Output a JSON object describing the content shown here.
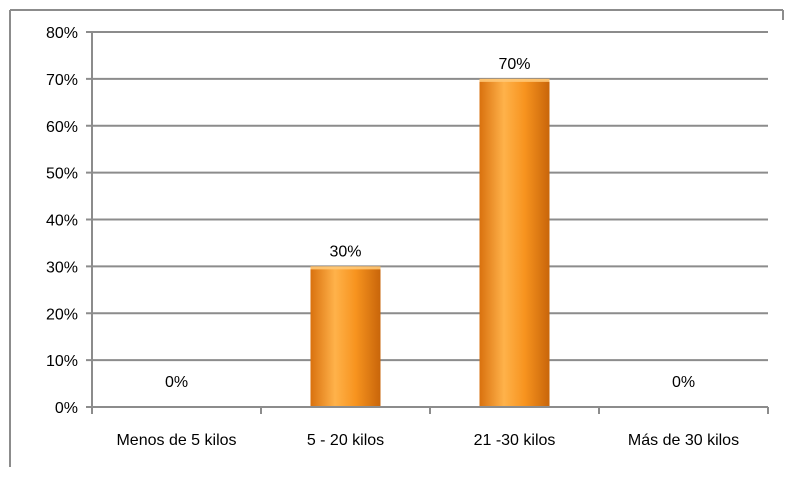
{
  "chart_data": {
    "type": "bar",
    "categories": [
      "Menos de 5 kilos",
      "5 - 20 kilos",
      "21 -30 kilos",
      "Más de 30 kilos"
    ],
    "values": [
      0,
      30,
      70,
      0
    ],
    "data_labels": [
      "0%",
      "30%",
      "70%",
      "0%"
    ],
    "yticks": [
      "0%",
      "10%",
      "20%",
      "30%",
      "40%",
      "50%",
      "60%",
      "70%",
      "80%"
    ],
    "ylim": [
      0,
      80
    ],
    "grid": true,
    "legend": "none",
    "colors": {
      "bar_light": "#FFC978",
      "bar_mid": "#F7931E",
      "bar_dark": "#C8650A",
      "grid": "#8C8C8C",
      "border": "#8C8C8C"
    }
  }
}
